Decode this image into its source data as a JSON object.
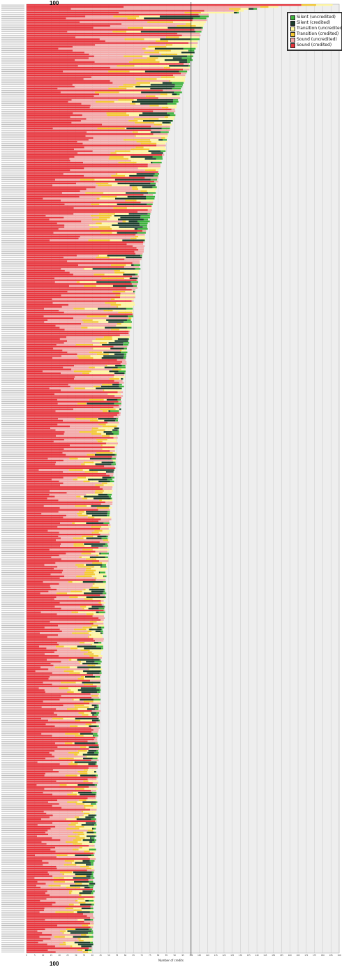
{
  "chart_data": {
    "type": "bar",
    "orientation": "horizontal",
    "stacked": true,
    "title": "",
    "xlabel": "Number of credits",
    "ylabel": "",
    "xlim": [
      0,
      190
    ],
    "x_tick_step": 5,
    "grid": true,
    "reference_line": {
      "value": 100,
      "label": "100"
    },
    "legend_position": "top-right",
    "rows_shown": 500,
    "series": [
      {
        "name": "Silent (uncredited)",
        "color": "#3cb23c"
      },
      {
        "name": "Silent (credited)",
        "color": "#1b3d2c"
      },
      {
        "name": "Transition (uncredited)",
        "color": "#fff7a0"
      },
      {
        "name": "Transition (credited)",
        "color": "#f5c830"
      },
      {
        "name": "Sound (uncredited)",
        "color": "#f4a7a7"
      },
      {
        "name": "Sound (credited)",
        "color": "#e8343c"
      }
    ],
    "top_rows_approx": [
      {
        "total": 186,
        "segments": [
          0,
          0,
          10,
          9,
          0,
          167
        ]
      },
      {
        "total": 153,
        "segments": [
          0,
          0,
          6,
          5,
          83,
          59
        ]
      },
      {
        "total": 140,
        "segments": [
          2,
          3,
          5,
          7,
          96,
          27
        ]
      },
      {
        "total": 132,
        "segments": [
          0,
          0,
          3,
          3,
          18,
          108
        ]
      },
      {
        "total": 129,
        "segments": [
          1,
          2,
          20,
          10,
          40,
          56
        ]
      }
    ]
  }
}
